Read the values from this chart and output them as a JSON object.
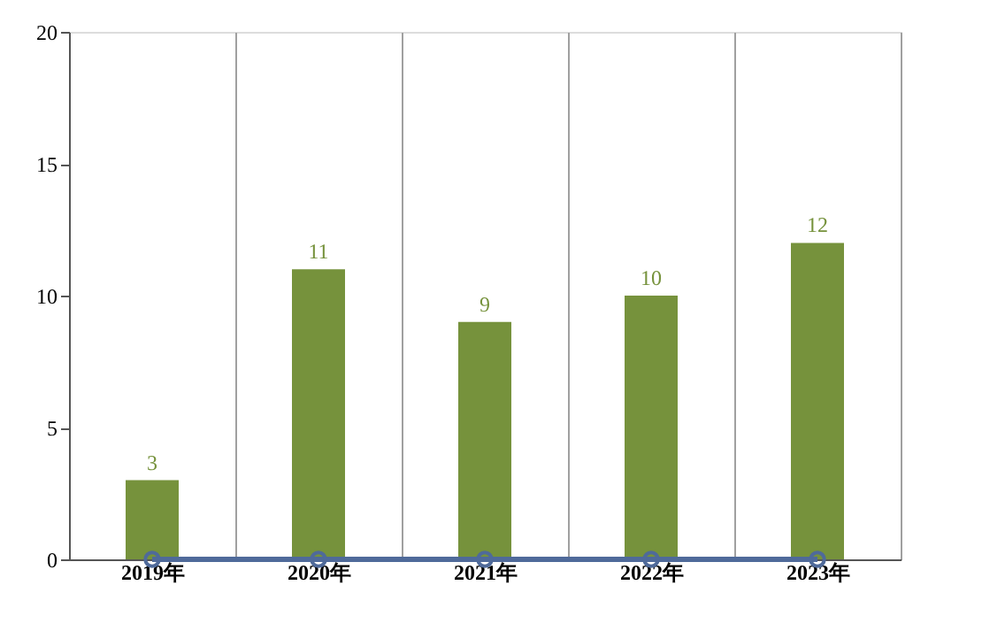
{
  "chart_data": {
    "type": "bar",
    "categories": [
      "2019年",
      "2020年",
      "2021年",
      "2022年",
      "2023年"
    ],
    "series": [
      {
        "color": "#76923c",
        "values": [
          3,
          11,
          9,
          10,
          12
        ],
        "value_labels": [
          "3",
          "11",
          "9",
          "10",
          "12"
        ]
      },
      {
        "type": "line",
        "color": "#4f6a9a",
        "values": [
          0,
          0,
          0,
          0,
          0
        ],
        "marker": "circle"
      }
    ],
    "ylim": [
      0,
      20
    ],
    "yticks": [
      0,
      5,
      10,
      15,
      20
    ],
    "grid": "x"
  }
}
